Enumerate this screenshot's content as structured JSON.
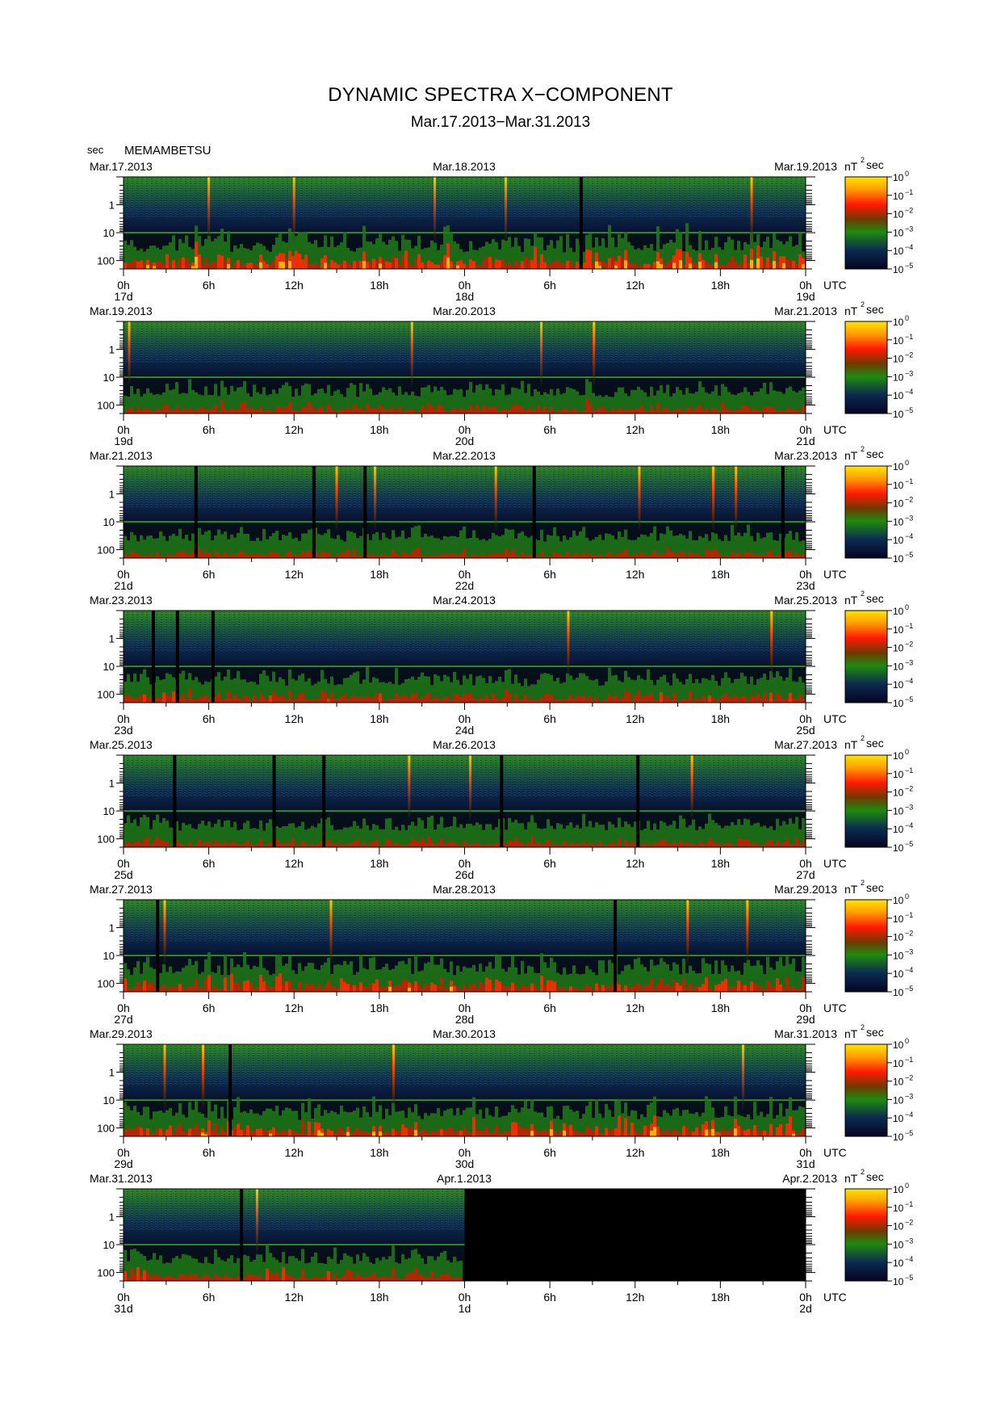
{
  "header": {
    "title": "DYNAMIC SPECTRA X−COMPONENT",
    "subtitle": "Mar.17.2013−Mar.31.2013",
    "unit_label": "sec",
    "station": "MEMAMBETSU"
  },
  "chart_data": {
    "type": "heatmap",
    "title": "DYNAMIC SPECTRA X−COMPONENT",
    "subtitle": "Mar.17.2013−Mar.31.2013",
    "station": "MEMAMBETSU",
    "y_unit": "sec",
    "y_scale": "log",
    "y_range_sec": [
      0.1,
      200
    ],
    "y_ticks": [
      "1",
      "10",
      "100"
    ],
    "x_tick_labels": [
      "0h",
      "6h",
      "12h",
      "18h",
      "0h",
      "6h",
      "12h",
      "18h",
      "0h"
    ],
    "x_unit": "UTC",
    "colorbar": {
      "unit": "nT",
      "unit_sup": "2",
      "unit_suffix": "sec",
      "ticks": [
        {
          "base": "10",
          "exp": "0"
        },
        {
          "base": "10",
          "exp": "−1"
        },
        {
          "base": "10",
          "exp": "−2"
        },
        {
          "base": "10",
          "exp": "−3"
        },
        {
          "base": "10",
          "exp": "−4"
        },
        {
          "base": "10",
          "exp": "−5"
        }
      ],
      "colors": [
        "#ffe600",
        "#ff8c00",
        "#ff1a00",
        "#6a4a00",
        "#1e8a10",
        "#0a2a50",
        "#050525"
      ]
    },
    "panels": [
      {
        "start_date": "Mar.17.2013",
        "mid_date": "Mar.18.2013",
        "end_date": "Mar.19.2013",
        "day_labels": [
          "17d",
          "18d",
          "19d"
        ],
        "noise_level": 0.85,
        "pulses_hours": [
          6.0,
          12.0,
          21.9,
          26.9,
          44.2
        ],
        "gaps_hours": [
          32.2
        ],
        "no_data_from_hour": null
      },
      {
        "start_date": "Mar.19.2013",
        "mid_date": "Mar.20.2013",
        "end_date": "Mar.21.2013",
        "day_labels": [
          "19d",
          "20d",
          "21d"
        ],
        "noise_level": 0.55,
        "pulses_hours": [
          0.4,
          20.3,
          29.4,
          33.1
        ],
        "gaps_hours": [],
        "no_data_from_hour": null
      },
      {
        "start_date": "Mar.21.2013",
        "mid_date": "Mar.22.2013",
        "end_date": "Mar.23.2013",
        "day_labels": [
          "21d",
          "22d",
          "23d"
        ],
        "noise_level": 0.5,
        "pulses_hours": [
          15.0,
          17.7,
          26.2,
          36.3,
          41.5,
          43.1
        ],
        "gaps_hours": [
          5.1,
          13.4,
          17.0,
          28.9,
          46.4
        ],
        "no_data_from_hour": null
      },
      {
        "start_date": "Mar.23.2013",
        "mid_date": "Mar.24.2013",
        "end_date": "Mar.25.2013",
        "day_labels": [
          "23d",
          "24d",
          "25d"
        ],
        "noise_level": 0.6,
        "pulses_hours": [
          31.3,
          45.6
        ],
        "gaps_hours": [
          2.1,
          3.8,
          6.3
        ],
        "no_data_from_hour": null
      },
      {
        "start_date": "Mar.25.2013",
        "mid_date": "Mar.26.2013",
        "end_date": "Mar.27.2013",
        "day_labels": [
          "25d",
          "26d",
          "27d"
        ],
        "noise_level": 0.5,
        "pulses_hours": [
          20.1,
          24.4,
          40.0
        ],
        "gaps_hours": [
          3.6,
          10.6,
          14.1,
          26.6,
          36.2
        ],
        "no_data_from_hour": null
      },
      {
        "start_date": "Mar.27.2013",
        "mid_date": "Mar.28.2013",
        "end_date": "Mar.29.2013",
        "day_labels": [
          "27d",
          "28d",
          "29d"
        ],
        "noise_level": 0.7,
        "pulses_hours": [
          2.9,
          14.6,
          39.7,
          43.9
        ],
        "gaps_hours": [
          2.4,
          34.6
        ],
        "no_data_from_hour": null
      },
      {
        "start_date": "Mar.29.2013",
        "mid_date": "Mar.30.2013",
        "end_date": "Mar.31.2013",
        "day_labels": [
          "29d",
          "30d",
          "31d"
        ],
        "noise_level": 0.75,
        "pulses_hours": [
          2.9,
          5.6,
          19.0,
          43.6
        ],
        "gaps_hours": [
          7.5
        ],
        "no_data_from_hour": null
      },
      {
        "start_date": "Mar.31.2013",
        "mid_date": "Apr.1.2013",
        "end_date": "Apr.2.2013",
        "day_labels": [
          "31d",
          "1d",
          "2d"
        ],
        "noise_level": 0.6,
        "pulses_hours": [
          9.4
        ],
        "gaps_hours": [
          8.3
        ],
        "no_data_from_hour": 24
      }
    ]
  }
}
